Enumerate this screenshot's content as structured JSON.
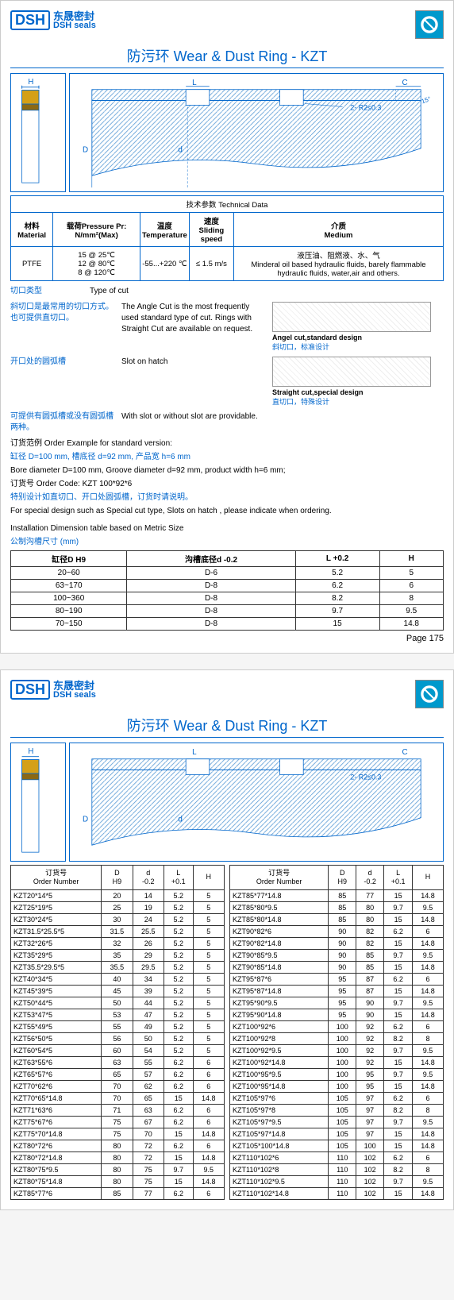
{
  "logo": {
    "mark": "DSH",
    "cn": "东晟密封",
    "en": "DSH seals"
  },
  "title": "防污环 Wear & Dust Ring - KZT",
  "diagram": {
    "labels": {
      "H": "H",
      "L": "L",
      "C": "C",
      "D": "D",
      "d": "d",
      "angle": "15°",
      "clearance": "2- R2≤0.3"
    }
  },
  "tech_header": "技术参数 Technical Data",
  "tech_cols": {
    "material_cn": "材料Material",
    "pressure": "载荷Pressure Pr: N/mm²(Max)",
    "temp_cn": "温度",
    "temp_en": "Temperature",
    "speed_cn": "速度",
    "speed_en": "Sliding speed",
    "medium_cn": "介质",
    "medium_en": "Medium"
  },
  "tech_vals": {
    "material": "PTFE",
    "pressure": "15 @ 25℃\n12 @ 80℃\n8 @ 120℃",
    "temp": "-55...+220 ℃",
    "speed": "≤ 1.5 m/s",
    "medium": "液压油、阻燃液、水、气\nMinderal oil based hydraulic fluids, barely flammable hydraulic fluids, water,air and others."
  },
  "cut_type": {
    "label_cn": "切口类型",
    "label_en": "Type of cut",
    "angle_cn": "斜切口是最常用的切口方式。也可提供直切口。",
    "angle_en": "The Angle Cut is the most frequently used standard type of cut. Rings with Straight Cut are available on request.",
    "angel_label": "Angel cut,standard design",
    "angel_cn": "斜切口，标准设计",
    "straight_label": "Straight cut,special design",
    "straight_cn": "直切口，特殊设计"
  },
  "slot": {
    "label_cn": "开口处的圆弧槽",
    "label_en": "Slot on hatch",
    "desc_cn": "可提供有圆弧槽或没有圆弧槽两种。",
    "desc_en": "With slot or without slot are providable."
  },
  "order_example": {
    "header": "订货范例 Order Example for standard version:",
    "line1_cn": "缸径 D=100 mm, 槽底径 d=92 mm, 产品宽 h=6 mm",
    "line1_en": "Bore diameter D=100 mm, Groove diameter d=92 mm, product width h=6 mm;",
    "code": "订货号 Order Code: KZT 100*92*6",
    "special_cn": "特别设计如直切口、开口处圆弧槽，订货时请说明。",
    "special_en": "For special design such as Special cut type, Slots on hatch , please indicate when ordering."
  },
  "install_header": "Installation Dimension table based on Metric Size",
  "install_sub": "公制沟槽尺寸 (mm)",
  "dim_cols": {
    "d": "缸径D H9",
    "groove": "沟槽底径d -0.2",
    "l": "L +0.2",
    "h": "H"
  },
  "dim_rows": [
    [
      "20~60",
      "D-6",
      "5.2",
      "5"
    ],
    [
      "63~170",
      "D-8",
      "6.2",
      "6"
    ],
    [
      "100~360",
      "D-8",
      "8.2",
      "8"
    ],
    [
      "80~190",
      "D-8",
      "9.7",
      "9.5"
    ],
    [
      "70~150",
      "D-8",
      "15",
      "14.8"
    ]
  ],
  "page_num": "Page 175",
  "order_cols": {
    "num_cn": "订货号",
    "num_en": "Order Number",
    "d": "D\nH9",
    "dd": "d\n-0.2",
    "l": "L\n+0.1",
    "h": "H"
  },
  "order_left": [
    [
      "KZT20*14*5",
      "20",
      "14",
      "5.2",
      "5"
    ],
    [
      "KZT25*19*5",
      "25",
      "19",
      "5.2",
      "5"
    ],
    [
      "KZT30*24*5",
      "30",
      "24",
      "5.2",
      "5"
    ],
    [
      "KZT31.5*25.5*5",
      "31.5",
      "25.5",
      "5.2",
      "5"
    ],
    [
      "KZT32*26*5",
      "32",
      "26",
      "5.2",
      "5"
    ],
    [
      "KZT35*29*5",
      "35",
      "29",
      "5.2",
      "5"
    ],
    [
      "KZT35.5*29.5*5",
      "35.5",
      "29.5",
      "5.2",
      "5"
    ],
    [
      "KZT40*34*5",
      "40",
      "34",
      "5.2",
      "5"
    ],
    [
      "KZT45*39*5",
      "45",
      "39",
      "5.2",
      "5"
    ],
    [
      "KZT50*44*5",
      "50",
      "44",
      "5.2",
      "5"
    ],
    [
      "KZT53*47*5",
      "53",
      "47",
      "5.2",
      "5"
    ],
    [
      "KZT55*49*5",
      "55",
      "49",
      "5.2",
      "5"
    ],
    [
      "KZT56*50*5",
      "56",
      "50",
      "5.2",
      "5"
    ],
    [
      "KZT60*54*5",
      "60",
      "54",
      "5.2",
      "5"
    ],
    [
      "KZT63*55*6",
      "63",
      "55",
      "6.2",
      "6"
    ],
    [
      "KZT65*57*6",
      "65",
      "57",
      "6.2",
      "6"
    ],
    [
      "KZT70*62*6",
      "70",
      "62",
      "6.2",
      "6"
    ],
    [
      "KZT70*65*14.8",
      "70",
      "65",
      "15",
      "14.8"
    ],
    [
      "KZT71*63*6",
      "71",
      "63",
      "6.2",
      "6"
    ],
    [
      "KZT75*67*6",
      "75",
      "67",
      "6.2",
      "6"
    ],
    [
      "KZT75*70*14.8",
      "75",
      "70",
      "15",
      "14.8"
    ],
    [
      "KZT80*72*6",
      "80",
      "72",
      "6.2",
      "6"
    ],
    [
      "KZT80*72*14.8",
      "80",
      "72",
      "15",
      "14.8"
    ],
    [
      "KZT80*75*9.5",
      "80",
      "75",
      "9.7",
      "9.5"
    ],
    [
      "KZT80*75*14.8",
      "80",
      "75",
      "15",
      "14.8"
    ],
    [
      "KZT85*77*6",
      "85",
      "77",
      "6.2",
      "6"
    ]
  ],
  "order_right": [
    [
      "KZT85*77*14.8",
      "85",
      "77",
      "15",
      "14.8"
    ],
    [
      "KZT85*80*9.5",
      "85",
      "80",
      "9.7",
      "9.5"
    ],
    [
      "KZT85*80*14.8",
      "85",
      "80",
      "15",
      "14.8"
    ],
    [
      "KZT90*82*6",
      "90",
      "82",
      "6.2",
      "6"
    ],
    [
      "KZT90*82*14.8",
      "90",
      "82",
      "15",
      "14.8"
    ],
    [
      "KZT90*85*9.5",
      "90",
      "85",
      "9.7",
      "9.5"
    ],
    [
      "KZT90*85*14.8",
      "90",
      "85",
      "15",
      "14.8"
    ],
    [
      "KZT95*87*6",
      "95",
      "87",
      "6.2",
      "6"
    ],
    [
      "KZT95*87*14.8",
      "95",
      "87",
      "15",
      "14.8"
    ],
    [
      "KZT95*90*9.5",
      "95",
      "90",
      "9.7",
      "9.5"
    ],
    [
      "KZT95*90*14.8",
      "95",
      "90",
      "15",
      "14.8"
    ],
    [
      "KZT100*92*6",
      "100",
      "92",
      "6.2",
      "6"
    ],
    [
      "KZT100*92*8",
      "100",
      "92",
      "8.2",
      "8"
    ],
    [
      "KZT100*92*9.5",
      "100",
      "92",
      "9.7",
      "9.5"
    ],
    [
      "KZT100*92*14.8",
      "100",
      "92",
      "15",
      "14.8"
    ],
    [
      "KZT100*95*9.5",
      "100",
      "95",
      "9.7",
      "9.5"
    ],
    [
      "KZT100*95*14.8",
      "100",
      "95",
      "15",
      "14.8"
    ],
    [
      "KZT105*97*6",
      "105",
      "97",
      "6.2",
      "6"
    ],
    [
      "KZT105*97*8",
      "105",
      "97",
      "8.2",
      "8"
    ],
    [
      "KZT105*97*9.5",
      "105",
      "97",
      "9.7",
      "9.5"
    ],
    [
      "KZT105*97*14.8",
      "105",
      "97",
      "15",
      "14.8"
    ],
    [
      "KZT105*100*14.8",
      "105",
      "100",
      "15",
      "14.8"
    ],
    [
      "KZT110*102*6",
      "110",
      "102",
      "6.2",
      "6"
    ],
    [
      "KZT110*102*8",
      "110",
      "102",
      "8.2",
      "8"
    ],
    [
      "KZT110*102*9.5",
      "110",
      "102",
      "9.7",
      "9.5"
    ],
    [
      "KZT110*102*14.8",
      "110",
      "102",
      "15",
      "14.8"
    ]
  ],
  "colors": {
    "brand": "#0066cc",
    "icon_bg": "#0099cc",
    "hatch": "#5a9bd5",
    "ring": "#d4a017"
  }
}
